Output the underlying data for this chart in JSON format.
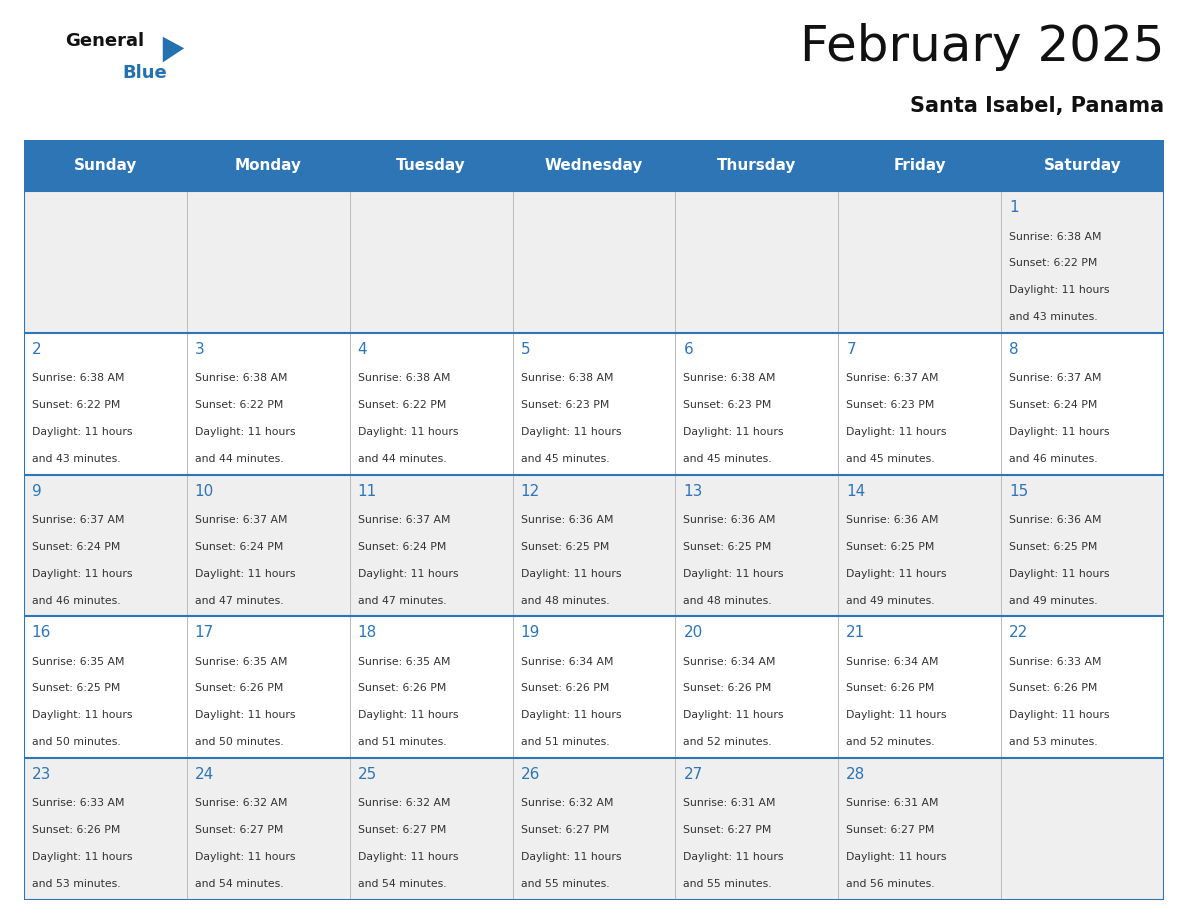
{
  "title": "February 2025",
  "subtitle": "Santa Isabel, Panama",
  "header_color": "#2E75B6",
  "header_text_color": "#FFFFFF",
  "day_names": [
    "Sunday",
    "Monday",
    "Tuesday",
    "Wednesday",
    "Thursday",
    "Friday",
    "Saturday"
  ],
  "bg_color": "#FFFFFF",
  "cell_bg_even": "#EFEFEF",
  "cell_bg_odd": "#FFFFFF",
  "day_num_color": "#2E75B6",
  "info_color": "#333333",
  "line_color": "#2E75B6",
  "days": [
    {
      "date": 1,
      "col": 6,
      "row": 0,
      "sunrise": "6:38 AM",
      "sunset": "6:22 PM",
      "daylight": "11 hours and 43 minutes"
    },
    {
      "date": 2,
      "col": 0,
      "row": 1,
      "sunrise": "6:38 AM",
      "sunset": "6:22 PM",
      "daylight": "11 hours and 43 minutes"
    },
    {
      "date": 3,
      "col": 1,
      "row": 1,
      "sunrise": "6:38 AM",
      "sunset": "6:22 PM",
      "daylight": "11 hours and 44 minutes"
    },
    {
      "date": 4,
      "col": 2,
      "row": 1,
      "sunrise": "6:38 AM",
      "sunset": "6:22 PM",
      "daylight": "11 hours and 44 minutes"
    },
    {
      "date": 5,
      "col": 3,
      "row": 1,
      "sunrise": "6:38 AM",
      "sunset": "6:23 PM",
      "daylight": "11 hours and 45 minutes"
    },
    {
      "date": 6,
      "col": 4,
      "row": 1,
      "sunrise": "6:38 AM",
      "sunset": "6:23 PM",
      "daylight": "11 hours and 45 minutes"
    },
    {
      "date": 7,
      "col": 5,
      "row": 1,
      "sunrise": "6:37 AM",
      "sunset": "6:23 PM",
      "daylight": "11 hours and 45 minutes"
    },
    {
      "date": 8,
      "col": 6,
      "row": 1,
      "sunrise": "6:37 AM",
      "sunset": "6:24 PM",
      "daylight": "11 hours and 46 minutes"
    },
    {
      "date": 9,
      "col": 0,
      "row": 2,
      "sunrise": "6:37 AM",
      "sunset": "6:24 PM",
      "daylight": "11 hours and 46 minutes"
    },
    {
      "date": 10,
      "col": 1,
      "row": 2,
      "sunrise": "6:37 AM",
      "sunset": "6:24 PM",
      "daylight": "11 hours and 47 minutes"
    },
    {
      "date": 11,
      "col": 2,
      "row": 2,
      "sunrise": "6:37 AM",
      "sunset": "6:24 PM",
      "daylight": "11 hours and 47 minutes"
    },
    {
      "date": 12,
      "col": 3,
      "row": 2,
      "sunrise": "6:36 AM",
      "sunset": "6:25 PM",
      "daylight": "11 hours and 48 minutes"
    },
    {
      "date": 13,
      "col": 4,
      "row": 2,
      "sunrise": "6:36 AM",
      "sunset": "6:25 PM",
      "daylight": "11 hours and 48 minutes"
    },
    {
      "date": 14,
      "col": 5,
      "row": 2,
      "sunrise": "6:36 AM",
      "sunset": "6:25 PM",
      "daylight": "11 hours and 49 minutes"
    },
    {
      "date": 15,
      "col": 6,
      "row": 2,
      "sunrise": "6:36 AM",
      "sunset": "6:25 PM",
      "daylight": "11 hours and 49 minutes"
    },
    {
      "date": 16,
      "col": 0,
      "row": 3,
      "sunrise": "6:35 AM",
      "sunset": "6:25 PM",
      "daylight": "11 hours and 50 minutes"
    },
    {
      "date": 17,
      "col": 1,
      "row": 3,
      "sunrise": "6:35 AM",
      "sunset": "6:26 PM",
      "daylight": "11 hours and 50 minutes"
    },
    {
      "date": 18,
      "col": 2,
      "row": 3,
      "sunrise": "6:35 AM",
      "sunset": "6:26 PM",
      "daylight": "11 hours and 51 minutes"
    },
    {
      "date": 19,
      "col": 3,
      "row": 3,
      "sunrise": "6:34 AM",
      "sunset": "6:26 PM",
      "daylight": "11 hours and 51 minutes"
    },
    {
      "date": 20,
      "col": 4,
      "row": 3,
      "sunrise": "6:34 AM",
      "sunset": "6:26 PM",
      "daylight": "11 hours and 52 minutes"
    },
    {
      "date": 21,
      "col": 5,
      "row": 3,
      "sunrise": "6:34 AM",
      "sunset": "6:26 PM",
      "daylight": "11 hours and 52 minutes"
    },
    {
      "date": 22,
      "col": 6,
      "row": 3,
      "sunrise": "6:33 AM",
      "sunset": "6:26 PM",
      "daylight": "11 hours and 53 minutes"
    },
    {
      "date": 23,
      "col": 0,
      "row": 4,
      "sunrise": "6:33 AM",
      "sunset": "6:26 PM",
      "daylight": "11 hours and 53 minutes"
    },
    {
      "date": 24,
      "col": 1,
      "row": 4,
      "sunrise": "6:32 AM",
      "sunset": "6:27 PM",
      "daylight": "11 hours and 54 minutes"
    },
    {
      "date": 25,
      "col": 2,
      "row": 4,
      "sunrise": "6:32 AM",
      "sunset": "6:27 PM",
      "daylight": "11 hours and 54 minutes"
    },
    {
      "date": 26,
      "col": 3,
      "row": 4,
      "sunrise": "6:32 AM",
      "sunset": "6:27 PM",
      "daylight": "11 hours and 55 minutes"
    },
    {
      "date": 27,
      "col": 4,
      "row": 4,
      "sunrise": "6:31 AM",
      "sunset": "6:27 PM",
      "daylight": "11 hours and 55 minutes"
    },
    {
      "date": 28,
      "col": 5,
      "row": 4,
      "sunrise": "6:31 AM",
      "sunset": "6:27 PM",
      "daylight": "11 hours and 56 minutes"
    }
  ]
}
